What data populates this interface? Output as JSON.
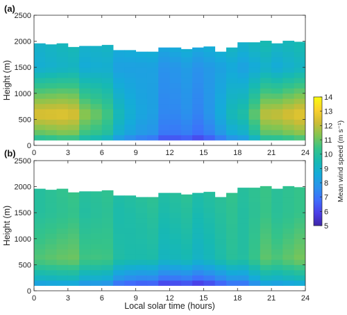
{
  "chart_data": [
    {
      "type": "heatmap",
      "panel_label": "(a)",
      "ylabel": "Height (m)",
      "xlabel": "",
      "xlim": [
        0,
        24
      ],
      "ylim": [
        0,
        2500
      ],
      "xticks": [
        "0",
        "3",
        "6",
        "9",
        "12",
        "15",
        "18",
        "21",
        "24"
      ],
      "yticks": [
        "0",
        "500",
        "1000",
        "1500",
        "2000",
        "2500"
      ],
      "column_width_hours": 1,
      "column_top_heights_m": [
        1960,
        1940,
        1960,
        1890,
        1910,
        1910,
        1930,
        1830,
        1830,
        1800,
        1800,
        1880,
        1880,
        1850,
        1880,
        1900,
        1800,
        1880,
        1980,
        1980,
        2010,
        1960,
        2010,
        1990
      ],
      "column_bottom_height_m": 100,
      "profile_heights_m": [
        100,
        200,
        300,
        400,
        500,
        600,
        700,
        800,
        900,
        1000,
        1100,
        1200,
        1300,
        1400,
        1500,
        1600,
        1700,
        1800,
        1900,
        2000
      ],
      "mean_wind_speed_at_hours": {
        "hours": [
          0.5,
          3,
          6,
          9,
          12,
          15,
          18,
          21,
          23.5
        ],
        "speed_at_600m": [
          12.8,
          12.5,
          10.8,
          8.5,
          7.4,
          7.6,
          9.5,
          12.4,
          12.6
        ],
        "speed_at_200m": [
          11.0,
          11.0,
          10.0,
          8.0,
          7.0,
          7.0,
          8.5,
          11.0,
          11.2
        ],
        "speed_at_1500m": [
          9.0,
          8.9,
          8.7,
          8.2,
          7.8,
          8.0,
          8.3,
          8.8,
          9.0
        ],
        "speed_at_1900m": [
          9.2,
          9.2,
          9.0,
          8.8,
          8.6,
          8.8,
          9.0,
          9.4,
          9.4
        ]
      }
    },
    {
      "type": "heatmap",
      "panel_label": "(b)",
      "ylabel": "Height (m)",
      "xlabel": "Local solar time (hours)",
      "xlim": [
        0,
        24
      ],
      "ylim": [
        0,
        2500
      ],
      "xticks": [
        "0",
        "3",
        "6",
        "9",
        "12",
        "15",
        "18",
        "21",
        "24"
      ],
      "yticks": [
        "0",
        "500",
        "1000",
        "1500",
        "2000",
        "2500"
      ],
      "column_width_hours": 1,
      "column_top_heights_m": [
        1960,
        1940,
        1960,
        1890,
        1910,
        1910,
        1930,
        1830,
        1830,
        1800,
        1800,
        1880,
        1880,
        1850,
        1880,
        1900,
        1800,
        1880,
        1980,
        1980,
        2010,
        1960,
        2010,
        1990
      ],
      "column_bottom_height_m": 100,
      "mean_wind_speed_at_hours": {
        "hours": [
          0.5,
          3,
          6,
          9,
          12,
          15,
          18,
          21,
          23.5
        ],
        "speed_at_600m": [
          11.0,
          10.9,
          10.5,
          9.6,
          9.3,
          9.3,
          9.9,
          10.9,
          11.1
        ],
        "speed_at_200m": [
          9.2,
          9.0,
          8.6,
          7.2,
          6.8,
          6.8,
          7.6,
          9.1,
          9.2
        ],
        "speed_at_1500m": [
          10.2,
          10.1,
          10.0,
          9.8,
          9.8,
          9.8,
          10.0,
          10.3,
          10.3
        ],
        "speed_at_1900m": [
          10.2,
          10.2,
          10.1,
          10.0,
          10.0,
          10.0,
          10.1,
          10.3,
          10.3
        ]
      }
    }
  ],
  "colorbar": {
    "title": "Mean wind speed (m s⁻¹)",
    "min": 5,
    "max": 14,
    "ticks": [
      "5",
      "6",
      "7",
      "8",
      "9",
      "10",
      "11",
      "12",
      "13",
      "14"
    ],
    "colormap": "parula",
    "stops": [
      "#3e26a8",
      "#4b3fe8",
      "#3f6efc",
      "#2a92ec",
      "#15abd9",
      "#17b9b2",
      "#35c389",
      "#82c552",
      "#cdbc34",
      "#fbd12c",
      "#f9fb0e"
    ]
  }
}
